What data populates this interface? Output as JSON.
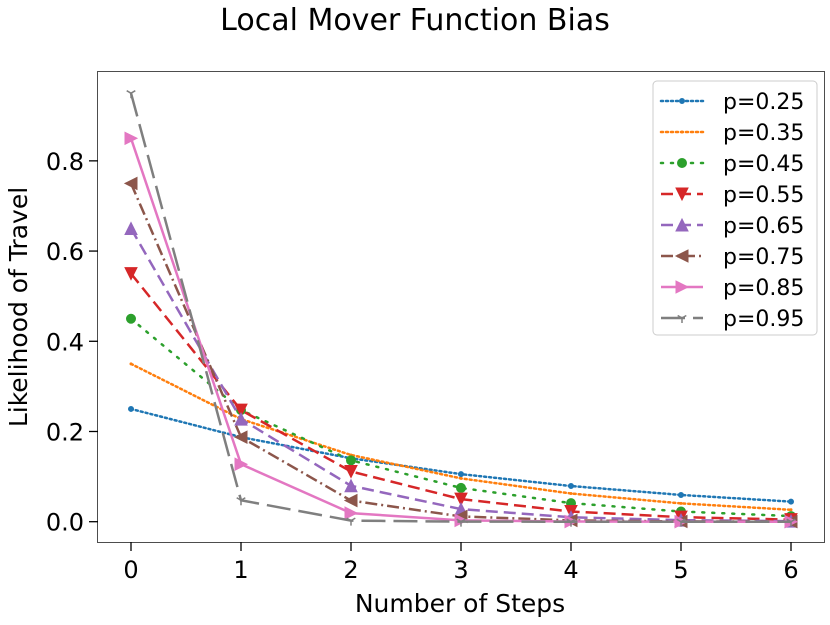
{
  "chart_data": {
    "type": "line",
    "title": "Local Mover Function Bias",
    "xlabel": "Number of Steps",
    "ylabel": "Likelihood of Travel",
    "x": [
      0,
      1,
      2,
      3,
      4,
      5,
      6
    ],
    "xticks": [
      "0",
      "1",
      "2",
      "3",
      "4",
      "5",
      "6"
    ],
    "yticks": [
      0.0,
      0.2,
      0.4,
      0.6,
      0.8
    ],
    "ytick_labels": [
      "0.0",
      "0.2",
      "0.4",
      "0.6",
      "0.8"
    ],
    "xlim": [
      -0.3,
      6.3
    ],
    "ylim": [
      -0.045,
      0.997
    ],
    "grid": false,
    "legend_position": "upper right",
    "series": [
      {
        "name": "p=0.25",
        "color": "#1f77b4",
        "dash": "dotted",
        "marker": "point",
        "values": [
          0.25,
          0.1875,
          0.1406,
          0.1055,
          0.0791,
          0.0593,
          0.0445
        ]
      },
      {
        "name": "p=0.35",
        "color": "#ff7f0e",
        "dash": "dotted",
        "marker": "pixel",
        "values": [
          0.35,
          0.2275,
          0.1479,
          0.0961,
          0.0625,
          0.0406,
          0.0264
        ]
      },
      {
        "name": "p=0.45",
        "color": "#2ca02c",
        "dash": "dotdot",
        "marker": "circle",
        "values": [
          0.45,
          0.2475,
          0.1361,
          0.0749,
          0.0412,
          0.0226,
          0.0125
        ]
      },
      {
        "name": "p=0.55",
        "color": "#d62728",
        "dash": "dashed",
        "marker": "triangle-down",
        "values": [
          0.55,
          0.2475,
          0.1114,
          0.0501,
          0.0226,
          0.0101,
          0.0046
        ]
      },
      {
        "name": "p=0.65",
        "color": "#9467bd",
        "dash": "dashed",
        "marker": "triangle-up",
        "values": [
          0.65,
          0.2275,
          0.0796,
          0.0279,
          0.0098,
          0.0034,
          0.0012
        ]
      },
      {
        "name": "p=0.75",
        "color": "#8c564b",
        "dash": "dashdot",
        "marker": "triangle-left",
        "values": [
          0.75,
          0.1875,
          0.0469,
          0.0117,
          0.0029,
          0.0007,
          0.0002
        ]
      },
      {
        "name": "p=0.85",
        "color": "#e377c2",
        "dash": "solid",
        "marker": "triangle-right",
        "values": [
          0.85,
          0.1275,
          0.0191,
          0.0029,
          0.0004,
          0.0001,
          0.0
        ]
      },
      {
        "name": "p=0.95",
        "color": "#7f7f7f",
        "dash": "longdash",
        "marker": "tri-down",
        "values": [
          0.95,
          0.0475,
          0.0024,
          0.0001,
          0.0,
          0.0,
          0.0
        ]
      }
    ]
  }
}
